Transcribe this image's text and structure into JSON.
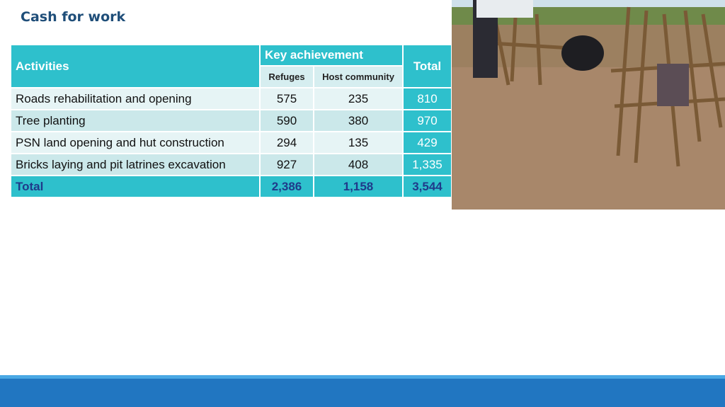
{
  "header": {
    "title": "Cash for work"
  },
  "table": {
    "columns": {
      "activities": "Activities",
      "key_achievement": "Key achievement",
      "refuges": "Refuges",
      "host_community": "Host community",
      "total": "Total"
    },
    "rows": [
      [
        "Roads rehabilitation and opening",
        "575",
        "235",
        "810"
      ],
      [
        "Tree planting",
        "590",
        "380",
        "970"
      ],
      [
        "PSN land opening and hut construction",
        "294",
        "135",
        "429"
      ],
      [
        "Bricks laying and pit latrines excavation",
        "927",
        "408",
        "1,335"
      ],
      [
        "Total",
        "2,386",
        "1,158",
        "3,544"
      ]
    ]
  }
}
